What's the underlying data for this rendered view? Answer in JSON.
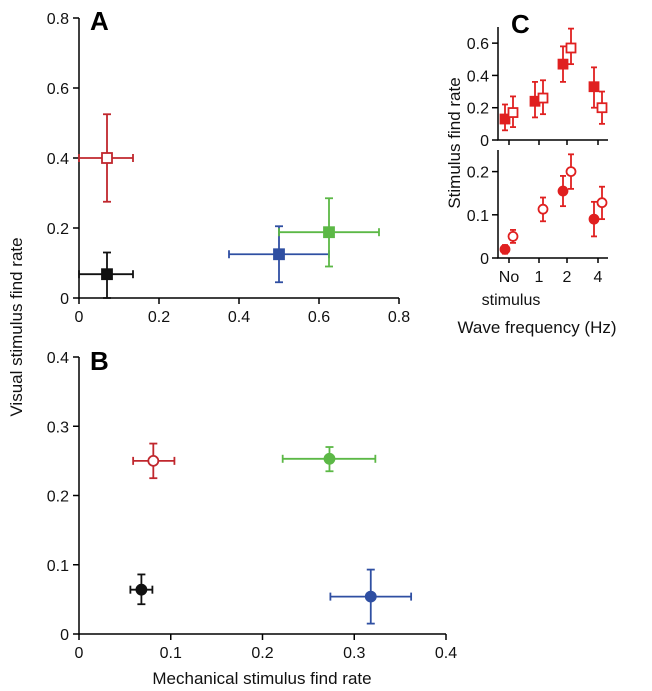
{
  "colors": {
    "red": "#c0272d",
    "green": "#5cb846",
    "blue": "#2f4fa2",
    "black": "#111111",
    "bright_red": "#e02020"
  },
  "shared_labels": {
    "ylabel": "Visual stimulus find rate",
    "xlabel": "Mechanical stimulus find rate"
  },
  "chart_data": [
    {
      "panel": "A",
      "type": "scatter",
      "xlim": [
        0,
        0.8
      ],
      "ylim": [
        0,
        0.8
      ],
      "xticks": [
        "0",
        "0.2",
        "0.4",
        "0.6",
        "0.8"
      ],
      "yticks": [
        "0",
        "0.2",
        "0.4",
        "0.6",
        "0.8"
      ],
      "marker": "square",
      "points": [
        {
          "color": "red",
          "open": true,
          "x": 0.07,
          "xerr": [
            0.0,
            0.135
          ],
          "y": 0.4,
          "yerr": [
            0.275,
            0.525
          ]
        },
        {
          "color": "black",
          "open": false,
          "x": 0.07,
          "xerr": [
            0.0,
            0.135
          ],
          "y": 0.068,
          "yerr": [
            0.0,
            0.13
          ]
        },
        {
          "color": "blue",
          "open": false,
          "x": 0.5,
          "xerr": [
            0.375,
            0.625
          ],
          "y": 0.125,
          "yerr": [
            0.045,
            0.205
          ]
        },
        {
          "color": "green",
          "open": false,
          "x": 0.625,
          "xerr": [
            0.5,
            0.75
          ],
          "y": 0.188,
          "yerr": [
            0.09,
            0.285
          ]
        }
      ]
    },
    {
      "panel": "B",
      "type": "scatter",
      "xlim": [
        0,
        0.4
      ],
      "ylim": [
        0,
        0.4
      ],
      "xticks": [
        "0",
        "0.1",
        "0.2",
        "0.3",
        "0.4"
      ],
      "yticks": [
        "0",
        "0.1",
        "0.2",
        "0.3",
        "0.4"
      ],
      "marker": "circle",
      "points": [
        {
          "color": "red",
          "open": true,
          "x": 0.081,
          "xerr": [
            0.059,
            0.104
          ],
          "y": 0.25,
          "yerr": [
            0.225,
            0.275
          ]
        },
        {
          "color": "green",
          "open": false,
          "x": 0.273,
          "xerr": [
            0.222,
            0.323
          ],
          "y": 0.253,
          "yerr": [
            0.235,
            0.27
          ]
        },
        {
          "color": "black",
          "open": false,
          "x": 0.068,
          "xerr": [
            0.056,
            0.08
          ],
          "y": 0.064,
          "yerr": [
            0.043,
            0.086
          ]
        },
        {
          "color": "blue",
          "open": false,
          "x": 0.318,
          "xerr": [
            0.274,
            0.362
          ],
          "y": 0.054,
          "yerr": [
            0.015,
            0.093
          ]
        }
      ]
    },
    {
      "panel": "C",
      "type": "scatter",
      "ylabel": "Stimulus find rate",
      "xlabel": "Wave frequency (Hz)",
      "xtick_values": [
        0,
        1,
        2,
        4
      ],
      "xticks": [
        "No",
        "1",
        "2",
        "4"
      ],
      "xtick_extra": "stimulus",
      "top": {
        "ylim": [
          0,
          0.7
        ],
        "yticks": [
          "0",
          "0.2",
          "0.4",
          "0.6"
        ],
        "marker": "square",
        "points": [
          {
            "x": 0,
            "open": false,
            "y": 0.13,
            "yerr": [
              0.06,
              0.22
            ]
          },
          {
            "x": 0,
            "open": true,
            "y": 0.17,
            "yerr": [
              0.08,
              0.27
            ]
          },
          {
            "x": 1,
            "open": false,
            "y": 0.24,
            "yerr": [
              0.14,
              0.36
            ]
          },
          {
            "x": 1,
            "open": true,
            "y": 0.26,
            "yerr": [
              0.16,
              0.37
            ]
          },
          {
            "x": 2,
            "open": false,
            "y": 0.47,
            "yerr": [
              0.36,
              0.58
            ]
          },
          {
            "x": 2,
            "open": true,
            "y": 0.57,
            "yerr": [
              0.47,
              0.69
            ]
          },
          {
            "x": 4,
            "open": false,
            "y": 0.33,
            "yerr": [
              0.2,
              0.45
            ]
          },
          {
            "x": 4,
            "open": true,
            "y": 0.2,
            "yerr": [
              0.1,
              0.3
            ]
          }
        ]
      },
      "bottom": {
        "ylim": [
          0,
          0.25
        ],
        "yticks": [
          "0",
          "0.1",
          "0.2"
        ],
        "marker": "circle",
        "points": [
          {
            "x": 0,
            "open": false,
            "y": 0.02,
            "yerr": [
              0.01,
              0.03
            ]
          },
          {
            "x": 0,
            "open": true,
            "y": 0.05,
            "yerr": [
              0.035,
              0.065
            ]
          },
          {
            "x": 1,
            "open": true,
            "y": 0.113,
            "yerr": [
              0.085,
              0.14
            ]
          },
          {
            "x": 2,
            "open": false,
            "y": 0.155,
            "yerr": [
              0.12,
              0.19
            ]
          },
          {
            "x": 2,
            "open": true,
            "y": 0.2,
            "yerr": [
              0.16,
              0.24
            ]
          },
          {
            "x": 4,
            "open": false,
            "y": 0.09,
            "yerr": [
              0.05,
              0.13
            ]
          },
          {
            "x": 4,
            "open": true,
            "y": 0.128,
            "yerr": [
              0.09,
              0.165
            ]
          }
        ]
      }
    }
  ]
}
